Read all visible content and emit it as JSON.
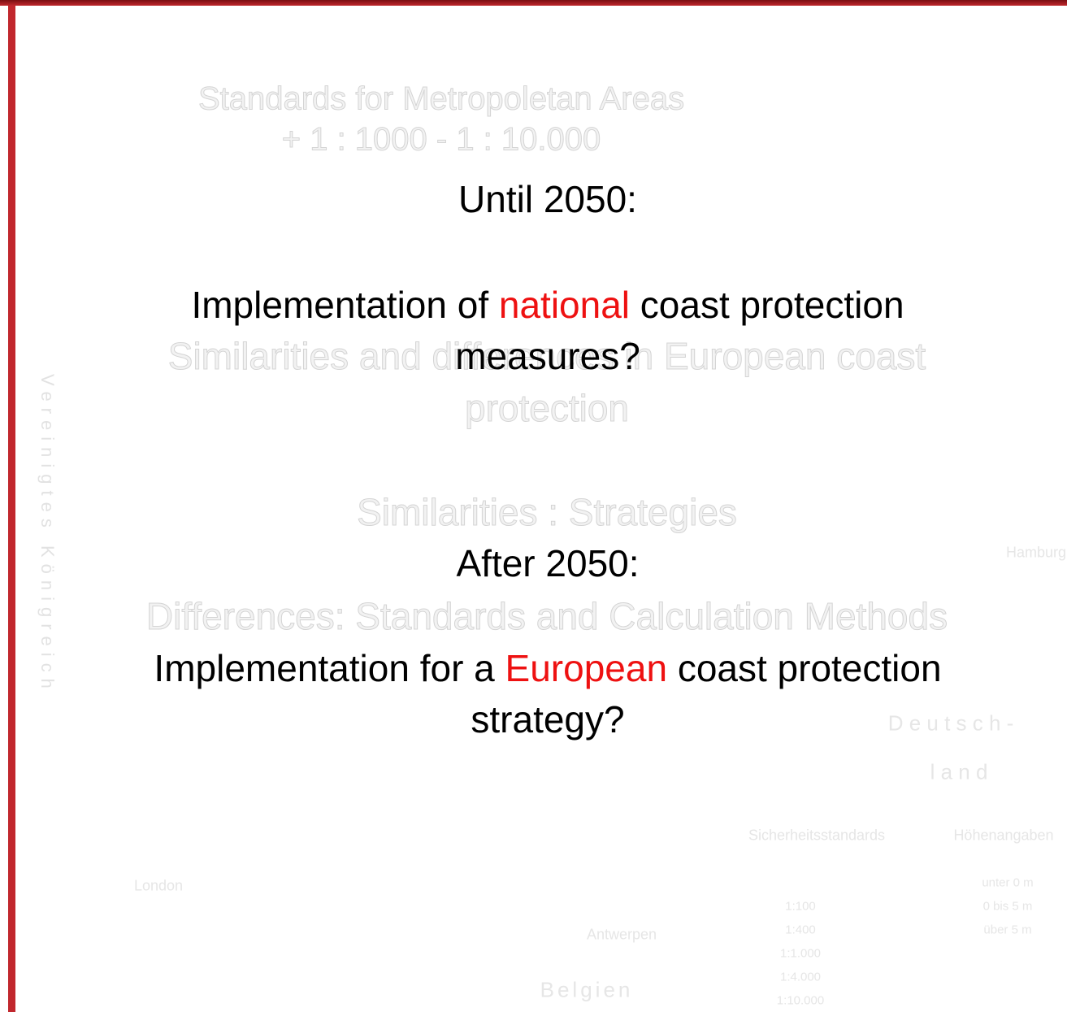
{
  "background": {
    "texts": [
      "Standards for Metropoletan Areas",
      "+ 1 : 1000 - 1 : 10.000",
      "Similarities and differences in European coast",
      "protection",
      "Similarities :  Strategies",
      "Differences: Standards and Calculation Methods"
    ],
    "map_labels": [
      "London",
      "Antwerpen",
      "Belgien",
      "D e u t s c h -",
      "l a n d",
      "Hamburg",
      "Sicherheitsstandards",
      "Höhenangaben",
      "Vereinigtes Königreich"
    ],
    "legend_left": [
      "1:100",
      "1:400",
      "1:1.000",
      "1:4.000",
      "1:10.000"
    ],
    "legend_right": [
      "unter 0 m",
      "0 bis 5 m",
      "über 5 m"
    ]
  },
  "slide": {
    "until": "Until 2050:",
    "line1": {
      "before": "Implementation of ",
      "highlight": "national",
      "after": " coast protection"
    },
    "line2": "measures?",
    "after_title": "After 2050:",
    "line3": {
      "before": "Implementation for a ",
      "highlight": "European",
      "after": " coast protection"
    },
    "line4": "strategy?"
  }
}
